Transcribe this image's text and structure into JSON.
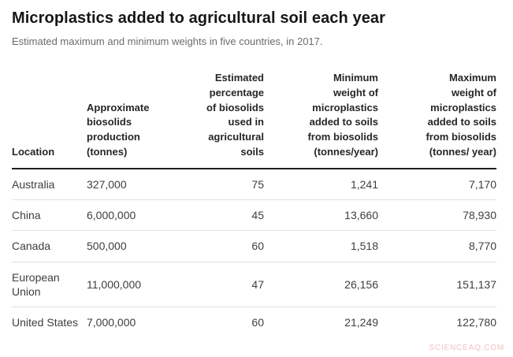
{
  "header": {
    "title": "Microplastics added to agricultural soil each year",
    "subtitle": "Estimated maximum and minimum weights in five countries, in 2017."
  },
  "table": {
    "columns": [
      {
        "label": "Location",
        "align": "left"
      },
      {
        "label": "Approximate\nbiosolids\nproduction\n(tonnes)",
        "align": "left"
      },
      {
        "label": "Estimated\npercentage\nof biosolids\nused in\nagricultural\nsoils",
        "align": "right"
      },
      {
        "label": "Minimum\nweight of\nmicroplastics\nadded to soils\nfrom biosolids\n(tonnes/year)",
        "align": "right"
      },
      {
        "label": "Maximum\nweight of\nmicroplastics\nadded to soils\nfrom biosolids\n(tonnes/ year)",
        "align": "right"
      }
    ],
    "rows": [
      [
        "Australia",
        "327,000",
        "75",
        "1,241",
        "7,170"
      ],
      [
        "China",
        "6,000,000",
        "45",
        "13,660",
        "78,930"
      ],
      [
        "Canada",
        "500,000",
        "60",
        "1,518",
        "8,770"
      ],
      [
        "European Union",
        "11,000,000",
        "47",
        "26,156",
        "151,137"
      ],
      [
        "United States",
        "7,000,000",
        "60",
        "21,249",
        "122,780"
      ]
    ]
  },
  "watermark": {
    "text": "SCIENCEAQ.COM"
  },
  "colors": {
    "background": "#ffffff",
    "title_text": "#161616",
    "subtitle_text": "#6c6c6c",
    "header_text": "#262626",
    "cell_text": "#3e3e3e",
    "header_border": "#1f1f1f",
    "row_border": "#e0e0e0",
    "watermark_text": "#f2c2c2"
  },
  "chart_data": {
    "type": "table",
    "title": "Microplastics added to agricultural soil each year",
    "subtitle": "Estimated maximum and minimum weights in five countries, in 2017.",
    "columns": [
      "Location",
      "Approximate biosolids production (tonnes)",
      "Estimated percentage of biosolids used in agricultural soils",
      "Minimum weight of microplastics added to soils from biosolids (tonnes/year)",
      "Maximum weight of microplastics added to soils from biosolids (tonnes/ year)"
    ],
    "rows": [
      [
        "Australia",
        327000,
        75,
        1241,
        7170
      ],
      [
        "China",
        6000000,
        45,
        13660,
        78930
      ],
      [
        "Canada",
        500000,
        60,
        1518,
        8770
      ],
      [
        "European Union",
        11000000,
        47,
        26156,
        151137
      ],
      [
        "United States",
        7000000,
        60,
        21249,
        122780
      ]
    ]
  }
}
